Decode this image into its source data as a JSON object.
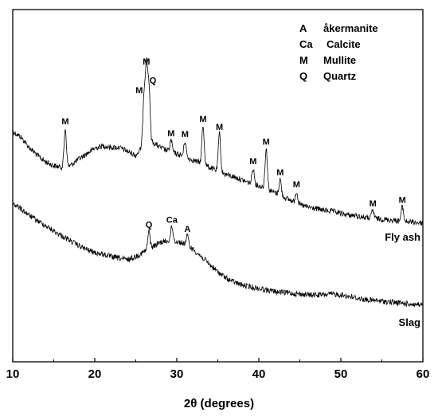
{
  "chart_data": {
    "type": "line",
    "title": "",
    "xlabel": "2θ (degrees)",
    "ylabel": "",
    "xlim": [
      10,
      60
    ],
    "xticks": [
      10,
      20,
      30,
      40,
      50,
      60
    ],
    "xtick_labels": [
      "10",
      "20",
      "30",
      "40",
      "50",
      "60"
    ],
    "legend_position": "top-right",
    "grid": false,
    "legend": [
      {
        "symbol": "A",
        "name": "åkermanite"
      },
      {
        "symbol": "Ca",
        "name": "Calcite"
      },
      {
        "symbol": "M",
        "name": "Mullite"
      },
      {
        "symbol": "Q",
        "name": "Quartz"
      }
    ],
    "series": [
      {
        "name": "Fly ash",
        "baseline": [
          [
            10,
            165
          ],
          [
            11,
            172
          ],
          [
            12,
            185
          ],
          [
            13,
            195
          ],
          [
            14,
            203
          ],
          [
            15,
            208
          ],
          [
            16,
            210
          ],
          [
            17,
            208
          ],
          [
            18,
            200
          ],
          [
            19,
            193
          ],
          [
            20,
            186
          ],
          [
            21,
            183
          ],
          [
            22,
            185
          ],
          [
            23,
            185
          ],
          [
            24,
            190
          ],
          [
            25,
            195
          ],
          [
            26,
            182
          ],
          [
            27,
            178
          ],
          [
            28,
            185
          ],
          [
            29,
            190
          ],
          [
            30,
            193
          ],
          [
            31,
            197
          ],
          [
            32,
            201
          ],
          [
            33,
            205
          ],
          [
            34,
            210
          ],
          [
            35,
            215
          ],
          [
            36,
            219
          ],
          [
            37,
            222
          ],
          [
            38,
            226
          ],
          [
            39,
            230
          ],
          [
            40,
            233
          ],
          [
            41,
            237
          ],
          [
            42,
            242
          ],
          [
            43,
            247
          ],
          [
            44,
            252
          ],
          [
            45,
            257
          ],
          [
            46,
            260
          ],
          [
            47,
            262
          ],
          [
            48,
            264
          ],
          [
            49,
            265
          ],
          [
            50,
            268
          ],
          [
            51,
            270
          ],
          [
            52,
            271
          ],
          [
            53,
            273
          ],
          [
            54,
            274
          ],
          [
            55,
            275
          ],
          [
            56,
            276
          ],
          [
            57,
            277
          ],
          [
            58,
            278
          ],
          [
            59,
            279
          ],
          [
            60,
            280
          ]
        ],
        "peaks": [
          {
            "two_theta": 16.4,
            "label": "M"
          },
          {
            "two_theta": 26.0,
            "label": "M"
          },
          {
            "two_theta": 26.3,
            "label": "M"
          },
          {
            "two_theta": 26.6,
            "label": "Q"
          },
          {
            "two_theta": 29.3,
            "label": "M"
          },
          {
            "two_theta": 31.0,
            "label": "M"
          },
          {
            "two_theta": 33.2,
            "label": "M"
          },
          {
            "two_theta": 35.2,
            "label": "M"
          },
          {
            "two_theta": 39.3,
            "label": "M"
          },
          {
            "two_theta": 40.9,
            "label": "M"
          },
          {
            "two_theta": 42.6,
            "label": "M"
          },
          {
            "two_theta": 44.6,
            "label": "M"
          },
          {
            "two_theta": 53.9,
            "label": "M"
          },
          {
            "two_theta": 57.5,
            "label": "M"
          }
        ]
      },
      {
        "name": "Slag",
        "baseline": [
          [
            10,
            255
          ],
          [
            11,
            262
          ],
          [
            12,
            270
          ],
          [
            13,
            277
          ],
          [
            14,
            283
          ],
          [
            15,
            290
          ],
          [
            16,
            296
          ],
          [
            17,
            302
          ],
          [
            18,
            308
          ],
          [
            19,
            313
          ],
          [
            20,
            317
          ],
          [
            21,
            319
          ],
          [
            22,
            322
          ],
          [
            23,
            324
          ],
          [
            24,
            326
          ],
          [
            25,
            322
          ],
          [
            26,
            316
          ],
          [
            27,
            310
          ],
          [
            28,
            304
          ],
          [
            29,
            302
          ],
          [
            30,
            303
          ],
          [
            31,
            306
          ],
          [
            32,
            313
          ],
          [
            33,
            322
          ],
          [
            34,
            332
          ],
          [
            35,
            341
          ],
          [
            36,
            349
          ],
          [
            37,
            354
          ],
          [
            38,
            358
          ],
          [
            39,
            360
          ],
          [
            40,
            362
          ],
          [
            41,
            364
          ],
          [
            42,
            366
          ],
          [
            43,
            367
          ],
          [
            44,
            368
          ],
          [
            45,
            369
          ],
          [
            46,
            370
          ],
          [
            47,
            370
          ],
          [
            48,
            370
          ],
          [
            49,
            369
          ],
          [
            50,
            370
          ],
          [
            51,
            372
          ],
          [
            52,
            374
          ],
          [
            53,
            376
          ],
          [
            54,
            377
          ],
          [
            55,
            378
          ],
          [
            56,
            379
          ],
          [
            57,
            380
          ],
          [
            58,
            381
          ],
          [
            59,
            382
          ],
          [
            60,
            383
          ]
        ],
        "peaks": [
          {
            "two_theta": 26.6,
            "label": "Q"
          },
          {
            "two_theta": 29.4,
            "label": "Ca"
          },
          {
            "two_theta": 31.3,
            "label": "A"
          }
        ]
      }
    ]
  }
}
